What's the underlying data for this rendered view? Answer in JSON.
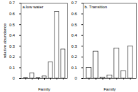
{
  "chart_data": [
    {
      "type": "bar",
      "title": "a.low water",
      "categories": [
        null,
        null,
        null,
        null,
        null,
        null,
        null
      ],
      "values": [
        0.005,
        0.05,
        0.003,
        0.02,
        0.15,
        0.62,
        0.27
      ],
      "color": "#ffffff",
      "xlabel": "Family",
      "ylabel": "relative abundance",
      "ylim": [
        0,
        0.7
      ],
      "yticks": [
        0,
        0.1,
        0.2,
        0.3,
        0.4,
        0.5,
        0.6,
        0.7
      ]
    },
    {
      "type": "bar",
      "title": "b. Transition",
      "categories": [
        null,
        null,
        null,
        null,
        null,
        null,
        null
      ],
      "values": [
        0.1,
        0.25,
        0.01,
        0.03,
        0.28,
        0.07,
        0.3
      ],
      "color": "#ffffff",
      "xlabel": "Family",
      "ylim": [
        0,
        0.7
      ],
      "yticks": [
        0,
        0.1,
        0.2,
        0.3,
        0.4,
        0.5,
        0.6,
        0.7
      ]
    }
  ]
}
